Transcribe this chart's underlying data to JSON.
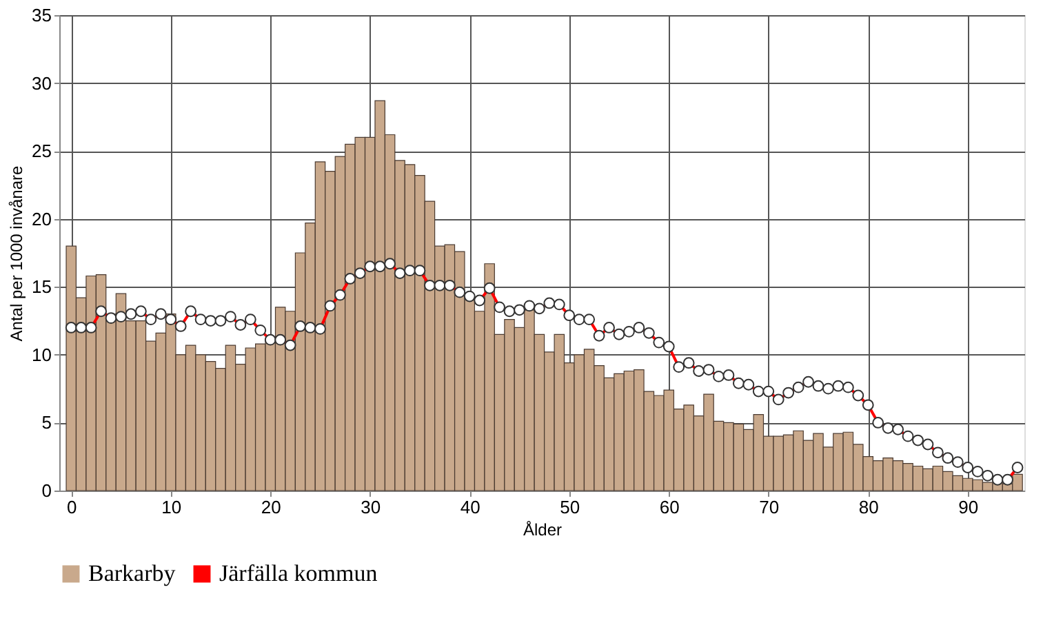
{
  "chart_data": {
    "type": "bar",
    "xlabel": "Ålder",
    "ylabel": "Antal per 1000 invånare",
    "x": [
      0,
      1,
      2,
      3,
      4,
      5,
      6,
      7,
      8,
      9,
      10,
      11,
      12,
      13,
      14,
      15,
      16,
      17,
      18,
      19,
      20,
      21,
      22,
      23,
      24,
      25,
      26,
      27,
      28,
      29,
      30,
      31,
      32,
      33,
      34,
      35,
      36,
      37,
      38,
      39,
      40,
      41,
      42,
      43,
      44,
      45,
      46,
      47,
      48,
      49,
      50,
      51,
      52,
      53,
      54,
      55,
      56,
      57,
      58,
      59,
      60,
      61,
      62,
      63,
      64,
      65,
      66,
      67,
      68,
      69,
      70,
      71,
      72,
      73,
      74,
      75,
      76,
      77,
      78,
      79,
      80,
      81,
      82,
      83,
      84,
      85,
      86,
      87,
      88,
      89,
      90,
      91,
      92,
      93,
      94,
      95
    ],
    "series": [
      {
        "name": "Barkarby",
        "color": "#c9a98c",
        "values": [
          18,
          14.2,
          15.8,
          15.9,
          13,
          14.5,
          12.5,
          12.5,
          11,
          11.6,
          13,
          10,
          10.7,
          10,
          9.5,
          9,
          10.7,
          9.3,
          10.5,
          10.8,
          11,
          13.5,
          13.2,
          17.5,
          19.7,
          24.2,
          23.5,
          24.6,
          25.5,
          26,
          26,
          28.7,
          26.2,
          24.3,
          24,
          23.2,
          21.3,
          18,
          18.1,
          17.6,
          14.2,
          13.2,
          16.7,
          11.5,
          12.6,
          12,
          13.3,
          11.5,
          10.2,
          11.5,
          9.4,
          10,
          10.4,
          9.2,
          8.3,
          8.6,
          8.8,
          8.9,
          7.3,
          7,
          7.4,
          6,
          6.3,
          5.5,
          7.1,
          5.1,
          5,
          4.9,
          4.5,
          5.6,
          4,
          4,
          4.1,
          4.4,
          3.7,
          4.2,
          3.2,
          4.2,
          4.3,
          3.4,
          2.5,
          2.2,
          2.4,
          2.2,
          2,
          1.8,
          1.6,
          1.8,
          1.4,
          1.1,
          0.9,
          0.8,
          0.6,
          0.6,
          0.5,
          1.2
        ]
      },
      {
        "name": "Järfälla kommun",
        "type": "line",
        "color": "#ff0000",
        "marker": "circle",
        "values": [
          12,
          12,
          12,
          13.2,
          12.7,
          12.8,
          13,
          13.2,
          12.6,
          13,
          12.6,
          12.1,
          13.2,
          12.6,
          12.5,
          12.5,
          12.8,
          12.2,
          12.6,
          11.8,
          11.1,
          11.1,
          10.7,
          12.1,
          12,
          11.9,
          13.6,
          14.4,
          15.6,
          16,
          16.5,
          16.5,
          16.7,
          16,
          16.2,
          16.2,
          15.1,
          15.1,
          15.1,
          14.6,
          14.3,
          14,
          14.9,
          13.5,
          13.2,
          13.3,
          13.6,
          13.4,
          13.8,
          13.7,
          12.9,
          12.6,
          12.6,
          11.4,
          12,
          11.5,
          11.7,
          12,
          11.6,
          10.9,
          10.6,
          9.1,
          9.4,
          8.8,
          8.9,
          8.4,
          8.5,
          7.9,
          7.8,
          7.3,
          7.3,
          6.7,
          7.2,
          7.6,
          8,
          7.7,
          7.5,
          7.7,
          7.6,
          7,
          6.3,
          5,
          4.6,
          4.5,
          4,
          3.7,
          3.4,
          2.8,
          2.4,
          2.1,
          1.7,
          1.4,
          1.1,
          0.8,
          0.8,
          1.7
        ]
      }
    ],
    "xlim": [
      -0.5,
      95
    ],
    "xticks": [
      0,
      10,
      20,
      30,
      40,
      50,
      60,
      70,
      80,
      90
    ],
    "ylim": [
      0,
      35
    ],
    "yticks": [
      0,
      5,
      10,
      15,
      20,
      25,
      30,
      35
    ],
    "grid": true,
    "legend": "bottom"
  }
}
